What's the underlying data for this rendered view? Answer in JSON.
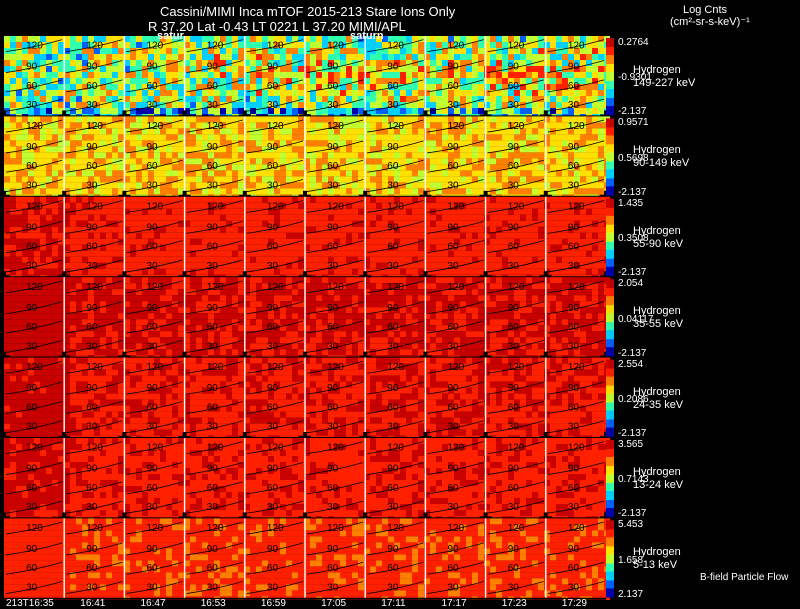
{
  "header": {
    "title_line1": "Cassini/MIMI Inca mTOF  2015-213    Stare    Ions Only",
    "title_line2": "R         37.20 Lat -0.43 LT 0221 L          37.20   MIMI/APL",
    "units_line1": "Log Cnts",
    "units_line2": "(cm²-sr-s-keV)⁻¹",
    "planet_label_1": "satur",
    "planet_label_2": "saturn"
  },
  "footer": {
    "time_labels": [
      "213T16:35",
      "16:41",
      "16:47",
      "16:53",
      "16:59",
      "17:05",
      "17:11",
      "17:17",
      "17:23",
      "17:29"
    ],
    "b_field_note": "B-field Particle Flow"
  },
  "chart_data": {
    "type": "heatmap",
    "title": "Cassini/MIMI Inca mTOF  2015-213    Stare    Ions Only",
    "colorscale": [
      "#0000aa",
      "#0060ff",
      "#00d0ff",
      "#30ffb0",
      "#c0ff30",
      "#ffe000",
      "#ff8000",
      "#ff2000",
      "#c80000"
    ],
    "contour_labels": [
      "120",
      "90",
      "60",
      "30"
    ],
    "bands": [
      {
        "species": "Hydrogen",
        "energy": "149-227 keV",
        "scale": [
          "0.2764",
          "-0.9301",
          "-2.137"
        ],
        "level": 0.45
      },
      {
        "species": "Hydrogen",
        "energy": "90-149 keV",
        "scale": [
          "0.9571",
          "0.5698",
          "-2.137"
        ],
        "level": 0.62
      },
      {
        "species": "Hydrogen",
        "energy": "55-90 keV",
        "scale": [
          "1.435",
          "0.3508",
          "-2.137"
        ],
        "level": 0.86
      },
      {
        "species": "Hydrogen",
        "energy": "35-55 keV",
        "scale": [
          "2.054",
          "0.04117",
          "-2.137"
        ],
        "level": 0.9
      },
      {
        "species": "Hydrogen",
        "energy": "24-35 keV",
        "scale": [
          "2.554",
          "0.2086",
          "-2.137"
        ],
        "level": 0.88
      },
      {
        "species": "Hydrogen",
        "energy": "13-24 keV",
        "scale": [
          "3.565",
          "0.7143",
          "-2.137"
        ],
        "level": 0.87
      },
      {
        "species": "Hydrogen",
        "energy": "5-13 keV",
        "scale": [
          "5.453",
          "1.658",
          "2.137"
        ],
        "level": 0.8
      }
    ]
  }
}
